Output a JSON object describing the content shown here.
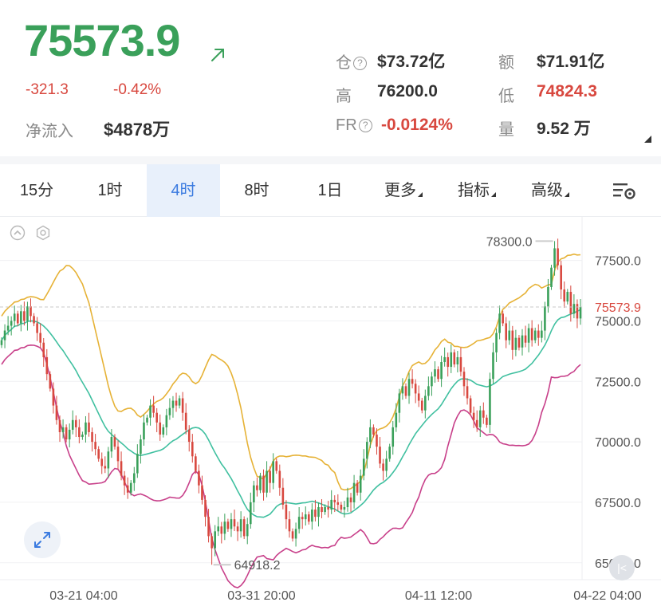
{
  "ticker": {
    "price": "75573.9",
    "change": "-321.3",
    "change_pct": "-0.42%",
    "netflow_label": "净流入",
    "netflow_value": "$4878万"
  },
  "stats": {
    "oi_label": "仓",
    "oi_value": "$73.72亿",
    "turnover_label": "额",
    "turnover_value": "$71.91亿",
    "high_label": "高",
    "high_value": "76200.0",
    "low_label": "低",
    "low_value": "74824.3",
    "fr_label": "FR",
    "fr_value": "-0.0124%",
    "volume_label": "量",
    "volume_value": "9.52 万"
  },
  "tabs": [
    "15分",
    "1时",
    "4时",
    "8时",
    "1日",
    "更多",
    "指标",
    "高级"
  ],
  "active_tab": "4时",
  "colors": {
    "up": "#3aa05a",
    "down": "#d8483f",
    "accent": "#3b7be0",
    "upper_band": "#e6b236",
    "middle_band": "#40c0a0",
    "lower_band": "#c8408a"
  },
  "icons": [
    "arrow-up-right-icon",
    "question-icon",
    "settings-icon",
    "collapse-icon",
    "gear-icon",
    "expand-icon",
    "k-icon"
  ],
  "chart_data": {
    "type": "candlestick",
    "indicator": "Bollinger Bands",
    "y_axis_ticks": [
      "77500.0",
      "75000.0",
      "72500.0",
      "70000.0",
      "67500.0",
      "65000.0"
    ],
    "x_axis_ticks": [
      "03-21 04:00",
      "03-31 20:00",
      "04-11 12:00",
      "04-22 04:00"
    ],
    "ylim": [
      64300,
      79300
    ],
    "current_price_label": "75573.9",
    "current_price": 75573.9,
    "high_marker": {
      "label": "78300.0",
      "value": 78300.0
    },
    "low_marker": {
      "label": "64918.2",
      "value": 64918.2
    },
    "close": [
      74200,
      74600,
      74800,
      75000,
      75300,
      74900,
      75400,
      75000,
      75600,
      75200,
      74900,
      74500,
      74100,
      73500,
      72800,
      72200,
      71500,
      70900,
      70400,
      70600,
      70100,
      70500,
      70900,
      70600,
      70200,
      70300,
      70800,
      70400,
      70000,
      69700,
      69300,
      69000,
      68900,
      69600,
      70200,
      69800,
      69200,
      68600,
      68200,
      67900,
      68300,
      68700,
      69500,
      70100,
      70800,
      71000,
      71500,
      71200,
      70800,
      70300,
      70600,
      71100,
      71400,
      71700,
      71500,
      71800,
      71200,
      70500,
      70000,
      69400,
      68800,
      68200,
      67600,
      66900,
      66100,
      65600,
      66300,
      66500,
      66200,
      66700,
      66400,
      66800,
      66500,
      66300,
      66800,
      66100,
      66600,
      67500,
      68200,
      68000,
      68600,
      67900,
      68800,
      68300,
      69200,
      68800,
      68100,
      67400,
      66800,
      66300,
      66000,
      66400,
      66900,
      66800,
      67000,
      66700,
      67200,
      66900,
      67300,
      67100,
      67300,
      67200,
      67600,
      67500,
      67400,
      67200,
      67300,
      67700,
      67500,
      68300,
      67900,
      68600,
      69300,
      70000,
      70600,
      70300,
      69800,
      69100,
      68800,
      69300,
      69800,
      70600,
      71200,
      72000,
      72300,
      71900,
      72600,
      72400,
      72000,
      71700,
      71300,
      71900,
      72300,
      72700,
      73000,
      72600,
      73300,
      73500,
      73100,
      73700,
      73200,
      73500,
      72900,
      72300,
      71800,
      71200,
      70900,
      70600,
      71300,
      71000,
      70700,
      72600,
      73700,
      74500,
      75300,
      74900,
      74200,
      74600,
      73800,
      74300,
      73900,
      74400,
      74100,
      74700,
      74200,
      74600,
      74300,
      74600,
      75600,
      76400,
      77200,
      78000,
      77300,
      76300,
      75800,
      76200,
      75300,
      75700,
      75100,
      75573.9
    ]
  }
}
